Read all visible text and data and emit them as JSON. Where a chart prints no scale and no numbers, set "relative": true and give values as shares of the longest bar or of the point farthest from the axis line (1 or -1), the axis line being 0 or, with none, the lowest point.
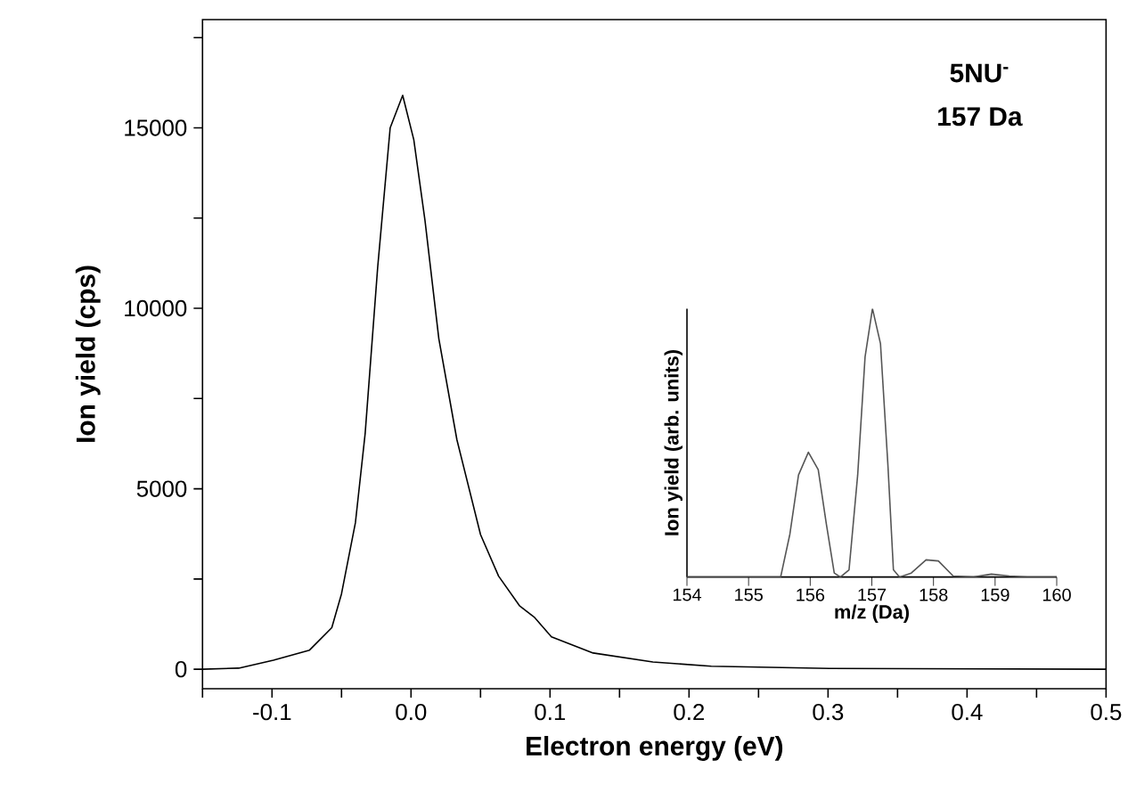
{
  "chart_data": [
    {
      "type": "line",
      "xlabel": "Electron energy (eV)",
      "ylabel": "Ion yield (cps)",
      "color": "#000000",
      "annotations": [
        "5NU$^{-}$",
        "157 Da"
      ],
      "x": [
        -0.15,
        -0.124,
        -0.099,
        -0.073,
        -0.057,
        -0.05,
        -0.04,
        -0.033,
        -0.024,
        -0.015,
        -0.006,
        0.002,
        0.01,
        0.02,
        0.033,
        0.05,
        0.063,
        0.078,
        0.089,
        0.101,
        0.131,
        0.174,
        0.216,
        0.301,
        0.5
      ],
      "values": [
        0,
        30,
        250,
        530,
        1150,
        2090,
        4060,
        6530,
        11130,
        15000,
        15900,
        14670,
        12450,
        9160,
        6360,
        3730,
        2580,
        1760,
        1430,
        900,
        450,
        200,
        85,
        20,
        0
      ],
      "xlim": [
        -0.15,
        0.5
      ],
      "ylim": [
        -540,
        18000
      ],
      "xticks": [
        {
          "value": -0.15,
          "label": null
        },
        -0.1,
        {
          "value": -0.05,
          "label": null
        },
        {
          "value": 0,
          "label": "0.0"
        },
        {
          "value": 0.05,
          "label": null
        },
        0.1,
        {
          "value": 0.15,
          "label": null
        },
        0.2,
        {
          "value": 0.25,
          "label": null
        },
        0.3,
        {
          "value": 0.35,
          "label": null
        },
        0.4,
        {
          "value": 0.45,
          "label": null
        },
        0.5
      ],
      "yticks": [
        0,
        {
          "value": 2500,
          "label": null
        },
        5000,
        {
          "value": 7500,
          "label": null
        },
        10000,
        {
          "value": 12500,
          "label": null
        },
        15000,
        {
          "value": 17500,
          "label": null
        }
      ]
    },
    {
      "type": "line",
      "relative": true,
      "xlabel": "m/z (Da)",
      "ylabel": "Ion yield (arb. units)",
      "color": "#555555",
      "x": [
        154,
        155.52,
        155.67,
        155.81,
        155.97,
        156.13,
        156.26,
        156.39,
        156.49,
        156.63,
        156.77,
        156.89,
        157.01,
        157.14,
        157.26,
        157.35,
        157.45,
        157.64,
        157.88,
        158.08,
        158.32,
        158.65,
        158.94,
        159.23,
        159.52,
        160
      ],
      "values": [
        0,
        0,
        0.16,
        0.38,
        0.465,
        0.4,
        0.2,
        0.015,
        0,
        0.027,
        0.38,
        0.82,
        1.0,
        0.87,
        0.42,
        0.027,
        0,
        0.015,
        0.064,
        0.06,
        0.004,
        0,
        0.011,
        0.004,
        0,
        0
      ],
      "xlim": [
        154,
        160
      ],
      "xticks": [
        154,
        155,
        156,
        157,
        158,
        159,
        160
      ]
    }
  ]
}
